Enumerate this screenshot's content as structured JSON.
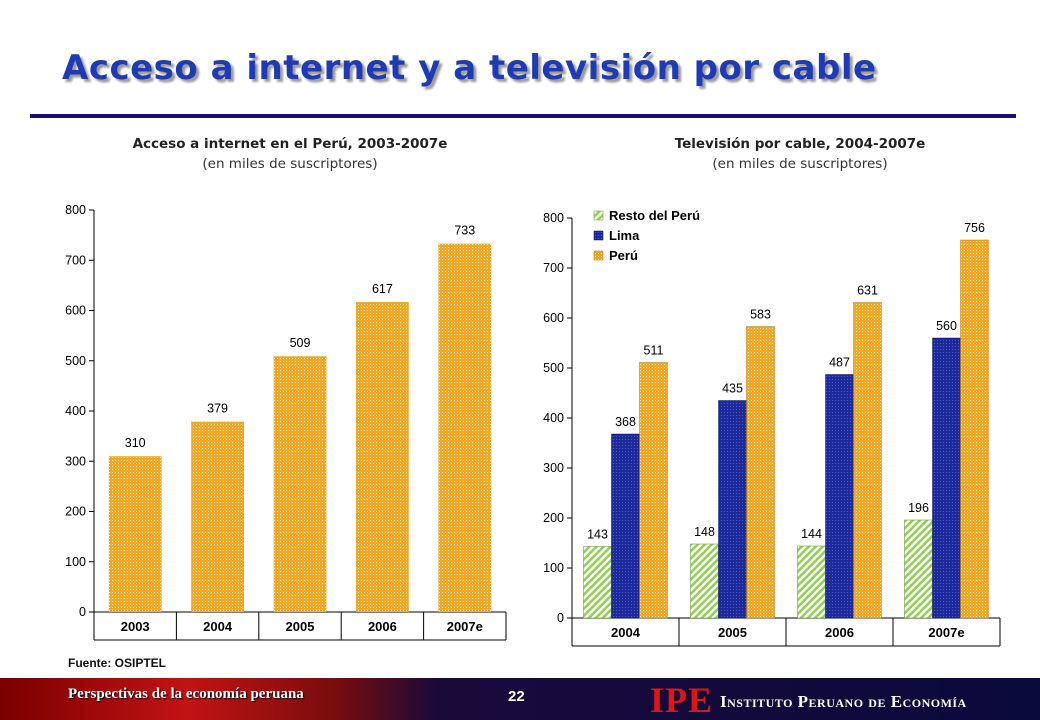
{
  "slide": {
    "title": "Acceso a internet y a televisión por cable",
    "source": "Fuente: OSIPTEL",
    "footer_left": "Perspectivas de la economía peruana",
    "page_number": "22",
    "logo_text": "IPE",
    "institute_name": "Instituto Peruano de Economía"
  },
  "colors": {
    "title": "#1f3bb3",
    "rule": "#14106b",
    "peru_bar": "#f5a623",
    "lima_bar": "#1c2a9a",
    "resto_bar": "#8fd14f"
  },
  "chart_data": [
    {
      "type": "bar",
      "title": "Acceso a internet en el Perú, 2003-2007e",
      "subtitle": "(en miles de suscriptores)",
      "categories": [
        "2003",
        "2004",
        "2005",
        "2006",
        "2007e"
      ],
      "values": [
        310,
        379,
        509,
        617,
        733
      ],
      "data_labels": [
        "310",
        "379",
        "509",
        "617",
        "733"
      ],
      "ylim": [
        0,
        800
      ],
      "yticks": [
        0,
        100,
        200,
        300,
        400,
        500,
        600,
        700,
        800
      ],
      "grid": false,
      "legend": "none"
    },
    {
      "type": "bar",
      "title": "Televisión por cable, 2004-2007e",
      "subtitle": "(en miles de suscriptores)",
      "categories": [
        "2004",
        "2005",
        "2006",
        "2007e"
      ],
      "series": [
        {
          "name": "Resto del Perú",
          "values": [
            143,
            148,
            144,
            196
          ]
        },
        {
          "name": "Lima",
          "values": [
            368,
            435,
            487,
            560
          ]
        },
        {
          "name": "Perú",
          "values": [
            511,
            583,
            631,
            756
          ]
        }
      ],
      "ylim": [
        0,
        800
      ],
      "yticks": [
        0,
        100,
        200,
        300,
        400,
        500,
        600,
        700,
        800
      ],
      "grid": false,
      "legend": "top-left"
    }
  ]
}
